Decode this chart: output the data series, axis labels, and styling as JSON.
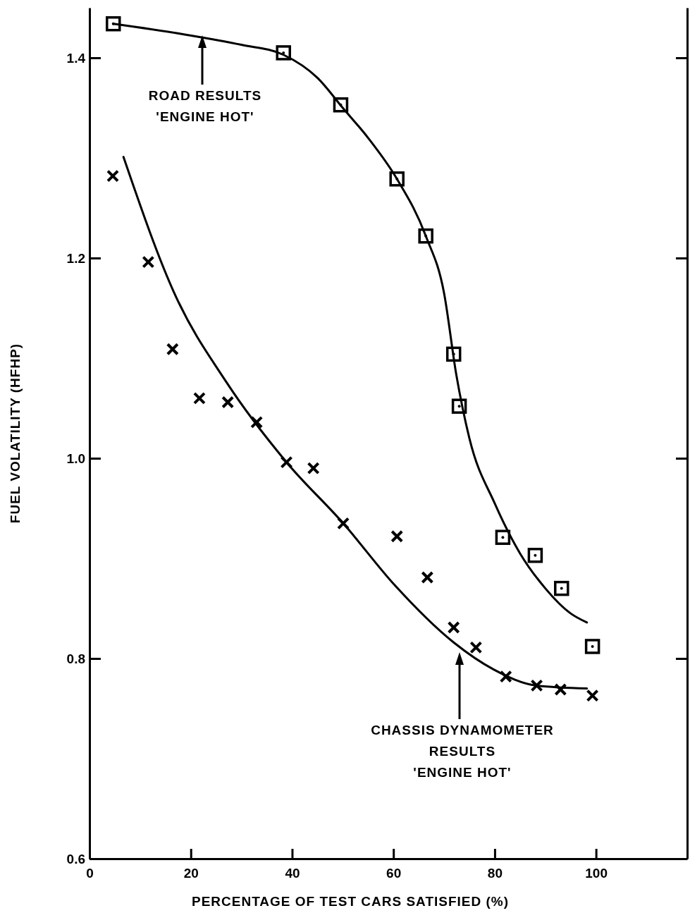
{
  "chart_data": {
    "type": "scatter",
    "xlabel": "PERCENTAGE OF TEST CARS SATISFIED (%)",
    "ylabel": "FUEL VOLATILITY (HFHP)",
    "xlim": [
      0,
      118
    ],
    "xticks": [
      0,
      20,
      40,
      60,
      80,
      100
    ],
    "ylim": [
      0.6,
      1.45
    ],
    "yticks": [
      {
        "value": 0.6,
        "label": "0.6"
      },
      {
        "value": 0.8,
        "label": "0.8"
      },
      {
        "value": 1.0,
        "label": "1.0"
      },
      {
        "value": 1.2,
        "label": "1.2"
      },
      {
        "value": 1.4,
        "label": "1.4"
      }
    ],
    "grid": false,
    "series": [
      {
        "marker": "square",
        "color": "#000000",
        "x": [
          4.7,
          38.3,
          49.6,
          60.7,
          66.4,
          71.9,
          73.0,
          81.6,
          88.0,
          93.2,
          99.3
        ],
        "values": [
          1.434,
          1.405,
          1.353,
          1.279,
          1.222,
          1.104,
          1.052,
          0.921,
          0.903,
          0.87,
          0.812
        ]
      },
      {
        "marker": "cross",
        "color": "#000000",
        "x": [
          4.6,
          11.6,
          16.4,
          21.7,
          27.3,
          33.0,
          38.9,
          44.2,
          50.1,
          60.7,
          66.7,
          71.9,
          76.3,
          82.2,
          88.3,
          93.0,
          99.3
        ],
        "values": [
          1.282,
          1.196,
          1.109,
          1.06,
          1.056,
          1.036,
          0.996,
          0.99,
          0.935,
          0.922,
          0.881,
          0.831,
          0.811,
          0.782,
          0.773,
          0.769,
          0.763
        ]
      },
      {
        "type": "line",
        "marker": "none",
        "line_style": "solid",
        "color": "#000000",
        "x": [
          4.7,
          18,
          30,
          38.3,
          45,
          50,
          55,
          60.7,
          66.4,
          70,
          72.4,
          75,
          80,
          85,
          90,
          95,
          98.2
        ],
        "values": [
          1.434,
          1.424,
          1.413,
          1.403,
          1.38,
          1.35,
          1.32,
          1.279,
          1.222,
          1.165,
          1.084,
          1.02,
          0.955,
          0.905,
          0.87,
          0.845,
          0.836
        ]
      },
      {
        "type": "line",
        "marker": "none",
        "line_style": "solid",
        "color": "#000000",
        "x": [
          6.7,
          17.1,
          26.9,
          38.9,
          50.1,
          60.3,
          71.9,
          79.8,
          88.2,
          98.2
        ],
        "values": [
          1.301,
          1.161,
          1.077,
          0.996,
          0.935,
          0.873,
          0.816,
          0.789,
          0.773,
          0.77
        ]
      }
    ],
    "annotations": [
      "ROAD RESULTS\n'ENGINE HOT'",
      "CHASSIS DYNAMOMETER\nRESULTS\n'ENGINE HOT'"
    ]
  }
}
